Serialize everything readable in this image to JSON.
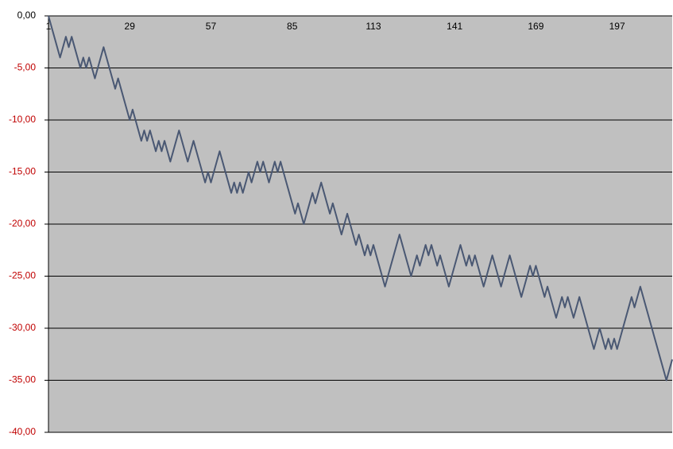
{
  "chart_data": {
    "type": "line",
    "categories": [
      1,
      null,
      null,
      null,
      null,
      null,
      null,
      null,
      null,
      null,
      null,
      null,
      null,
      null,
      null,
      null,
      null,
      null,
      null,
      null,
      null,
      null,
      null,
      null,
      null,
      null,
      null,
      null,
      29,
      null,
      null,
      null,
      null,
      null,
      null,
      null,
      null,
      null,
      null,
      null,
      null,
      null,
      null,
      null,
      null,
      null,
      null,
      null,
      null,
      null,
      null,
      null,
      null,
      null,
      null,
      null,
      57,
      null,
      null,
      null,
      null,
      null,
      null,
      null,
      null,
      null,
      null,
      null,
      null,
      null,
      null,
      null,
      null,
      null,
      null,
      null,
      null,
      null,
      null,
      null,
      null,
      null,
      null,
      null,
      85,
      null,
      null,
      null,
      null,
      null,
      null,
      null,
      null,
      null,
      null,
      null,
      null,
      null,
      null,
      null,
      null,
      null,
      null,
      null,
      null,
      null,
      null,
      null,
      null,
      null,
      null,
      null,
      113,
      null,
      null,
      null,
      null,
      null,
      null,
      null,
      null,
      null,
      null,
      null,
      null,
      null,
      null,
      null,
      null,
      null,
      null,
      null,
      null,
      null,
      null,
      null,
      null,
      null,
      null,
      null,
      141,
      null,
      null,
      null,
      null,
      null,
      null,
      null,
      null,
      null,
      null,
      null,
      null,
      null,
      null,
      null,
      null,
      null,
      null,
      null,
      null,
      null,
      null,
      null,
      null,
      null,
      null,
      null,
      169,
      null,
      null,
      null,
      null,
      null,
      null,
      null,
      null,
      null,
      null,
      null,
      null,
      null,
      null,
      null,
      null,
      null,
      null,
      null,
      null,
      null,
      null,
      null,
      null,
      null,
      null,
      null,
      197,
      null,
      null,
      null,
      null,
      null,
      null,
      null,
      null,
      null,
      null,
      null,
      null,
      null,
      null,
      null,
      null,
      null,
      null,
      null
    ],
    "values": [
      0,
      -1,
      -2,
      -3,
      -4,
      -3,
      -2,
      -3,
      -2,
      -3,
      -4,
      -5,
      -4,
      -5,
      -4,
      -5,
      -6,
      -5,
      -4,
      -3,
      -4,
      -5,
      -6,
      -7,
      -6,
      -7,
      -8,
      -9,
      -10,
      -9,
      -10,
      -11,
      -12,
      -11,
      -12,
      -11,
      -12,
      -13,
      -12,
      -13,
      -12,
      -13,
      -14,
      -13,
      -12,
      -11,
      -12,
      -13,
      -14,
      -13,
      -12,
      -13,
      -14,
      -15,
      -16,
      -15,
      -16,
      -15,
      -14,
      -13,
      -14,
      -15,
      -16,
      -17,
      -16,
      -17,
      -16,
      -17,
      -16,
      -15,
      -16,
      -15,
      -14,
      -15,
      -14,
      -15,
      -16,
      -15,
      -14,
      -15,
      -14,
      -15,
      -16,
      -17,
      -18,
      -19,
      -18,
      -19,
      -20,
      -19,
      -18,
      -17,
      -18,
      -17,
      -16,
      -17,
      -18,
      -19,
      -18,
      -19,
      -20,
      -21,
      -20,
      -19,
      -20,
      -21,
      -22,
      -21,
      -22,
      -23,
      -22,
      -23,
      -22,
      -23,
      -24,
      -25,
      -26,
      -25,
      -24,
      -23,
      -22,
      -21,
      -22,
      -23,
      -24,
      -25,
      -24,
      -23,
      -24,
      -23,
      -22,
      -23,
      -22,
      -23,
      -24,
      -23,
      -24,
      -25,
      -26,
      -25,
      -24,
      -23,
      -22,
      -23,
      -24,
      -23,
      -24,
      -23,
      -24,
      -25,
      -26,
      -25,
      -24,
      -23,
      -24,
      -25,
      -26,
      -25,
      -24,
      -23,
      -24,
      -25,
      -26,
      -27,
      -26,
      -25,
      -24,
      -25,
      -24,
      -25,
      -26,
      -27,
      -26,
      -27,
      -28,
      -29,
      -28,
      -27,
      -28,
      -27,
      -28,
      -29,
      -28,
      -27,
      -28,
      -29,
      -30,
      -31,
      -32,
      -31,
      -30,
      -31,
      -32,
      -31,
      -32,
      -31,
      -32,
      -31,
      -30,
      -29,
      -28,
      -27,
      -28,
      -27,
      -26,
      -27,
      -28,
      -29,
      -30,
      -31,
      -32,
      -33,
      -34,
      -35,
      -34,
      -33
    ],
    "color": "#4a5873",
    "ylim": [
      -40,
      0
    ],
    "yticks": [
      {
        "value": 0,
        "label": "0,00"
      },
      {
        "value": -5,
        "label": "-5,00"
      },
      {
        "value": -10,
        "label": "-10,00"
      },
      {
        "value": -15,
        "label": "-15,00"
      },
      {
        "value": -20,
        "label": "-20,00"
      },
      {
        "value": -25,
        "label": "-25,00"
      },
      {
        "value": -30,
        "label": "-30,00"
      },
      {
        "value": -35,
        "label": "-35,00"
      },
      {
        "value": -40,
        "label": "-40,00"
      }
    ],
    "grid": true,
    "plot_background": "#c0c0c0",
    "negative_label_color": "#c00000"
  }
}
